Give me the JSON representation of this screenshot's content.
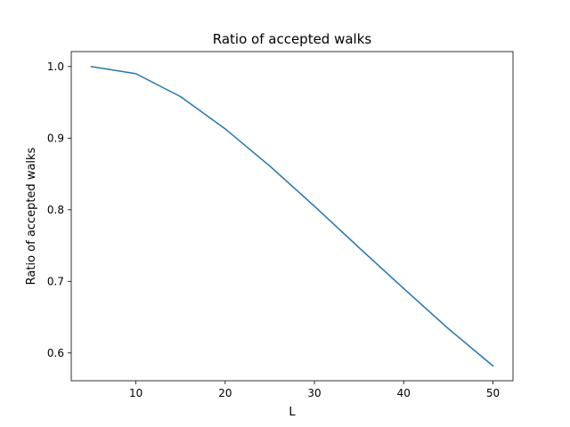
{
  "chart_data": {
    "type": "line",
    "title": "Ratio of accepted walks",
    "xlabel": "L",
    "ylabel": "Ratio of accepted walks",
    "xlim": [
      2.75,
      52.25
    ],
    "ylim": [
      0.5612,
      1.0209
    ],
    "xticks": [
      10,
      20,
      30,
      40,
      50
    ],
    "yticks": [
      0.6,
      0.7,
      0.8,
      0.9,
      1.0
    ],
    "ytick_labels": [
      "0.6",
      "0.7",
      "0.8",
      "0.9",
      "1.0"
    ],
    "grid": false,
    "series": [
      {
        "color": "#1f77b4",
        "x": [
          5,
          10,
          15,
          20,
          25,
          30,
          35,
          40,
          45,
          50
        ],
        "y": [
          1.0,
          0.99,
          0.958,
          0.913,
          0.861,
          0.805,
          0.747,
          0.69,
          0.634,
          0.582
        ]
      }
    ]
  }
}
